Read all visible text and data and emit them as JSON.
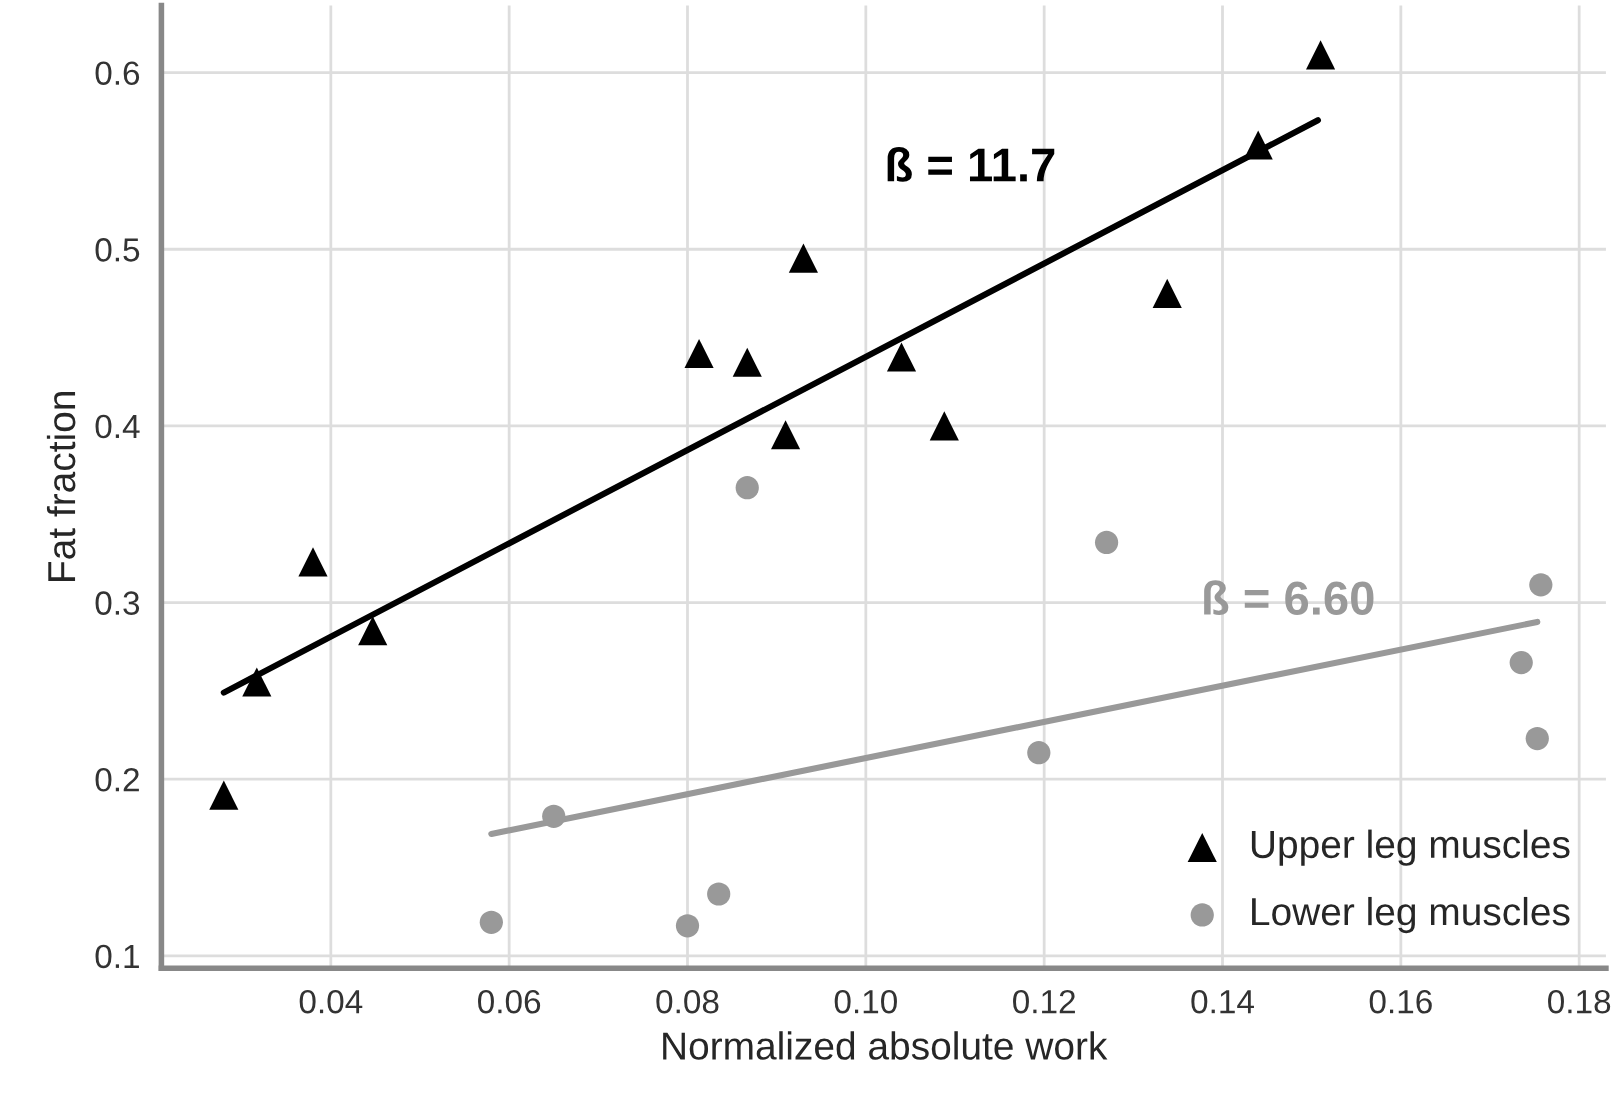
{
  "chart_data": {
    "type": "scatter",
    "xlabel": "Normalized absolute work",
    "ylabel": "Fat fraction",
    "xlim": [
      0.021,
      0.183
    ],
    "ylim": [
      0.093,
      0.638
    ],
    "xticks": [
      0.04,
      0.06,
      0.08,
      {
        "value": 0.1,
        "label": "0.10"
      },
      0.12,
      0.14,
      0.16,
      0.18
    ],
    "yticks": [
      0.1,
      0.2,
      0.3,
      0.4,
      0.5,
      0.6
    ],
    "grid": true,
    "legend": "bottom right",
    "series": [
      {
        "name": "Upper leg muscles",
        "marker": "triangle",
        "color": "#000000",
        "x": [
          0.028,
          0.0317,
          0.038,
          0.0447,
          0.0813,
          0.0867,
          0.091,
          0.093,
          0.104,
          0.1088,
          0.1338,
          0.144,
          0.151
        ],
        "values": [
          0.191,
          0.255,
          0.323,
          0.284,
          0.441,
          0.436,
          0.395,
          0.495,
          0.439,
          0.4,
          0.475,
          0.559,
          0.61
        ]
      },
      {
        "name": "Lower leg muscles",
        "marker": "circle",
        "color": "#999999",
        "x": [
          0.0867,
          0.127,
          0.058,
          0.065,
          0.08,
          0.0835,
          0.1194,
          0.1757,
          0.1735,
          0.1753
        ],
        "values": [
          0.365,
          0.334,
          0.119,
          0.179,
          0.117,
          0.135,
          0.215,
          0.31,
          0.266,
          0.223
        ]
      },
      {
        "type": "line",
        "color": "#000000",
        "x": [
          0.028,
          0.1507
        ],
        "values": [
          0.249,
          0.573
        ]
      },
      {
        "type": "line",
        "color": "#999999",
        "x": [
          0.058,
          0.1753
        ],
        "values": [
          0.169,
          0.289
        ]
      }
    ],
    "annotations": [
      "ß = 11.7",
      "ß = 6.60"
    ]
  }
}
